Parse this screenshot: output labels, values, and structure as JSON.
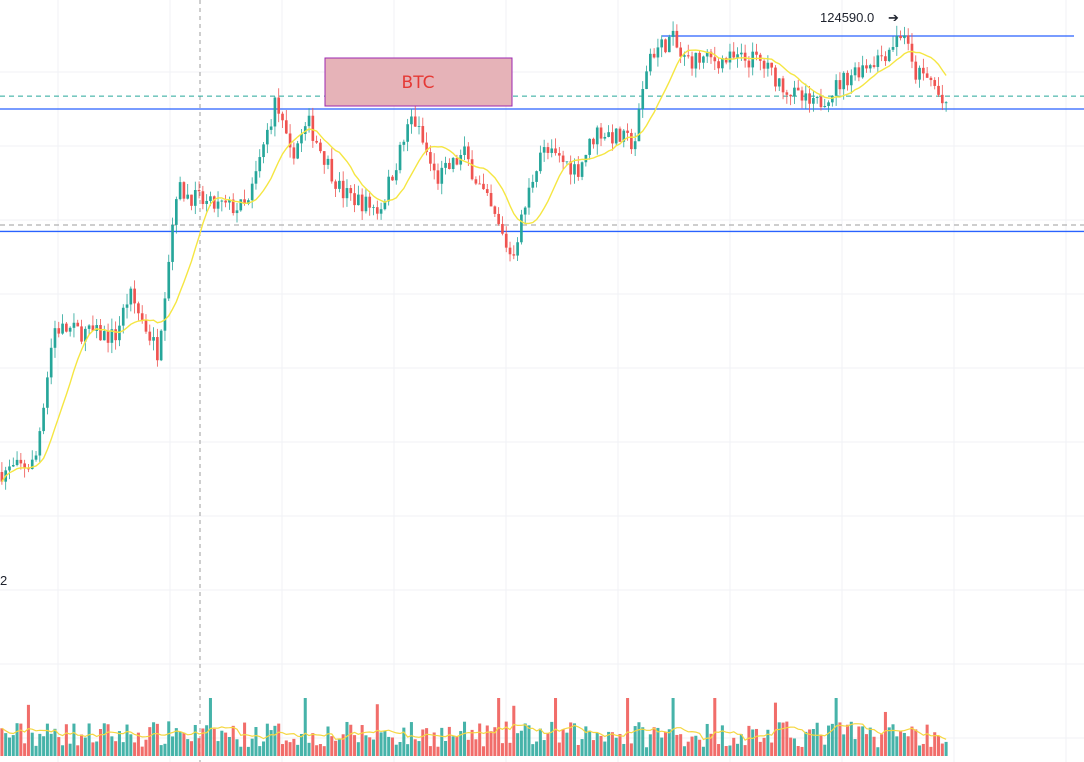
{
  "chart_data": {
    "type": "candlestick",
    "symbol_label": "BTC",
    "high_label": "124590.0",
    "left_edge_label": "2",
    "colors": {
      "up": "#26a69a",
      "down": "#ef5350",
      "ma": "#f5e642",
      "support_resistance": "#2962ff",
      "dashed_level_upper": "#26a69a",
      "dashed_level_lower": "#9e9e9e",
      "btc_box_fill": "#e6b3b8",
      "btc_box_border": "#9c27b0",
      "btc_text": "#e53935"
    },
    "price_range": [
      100000,
      126000
    ],
    "keyframes": [
      {
        "t": 0,
        "p": 104000
      },
      {
        "t": 0.035,
        "p": 104400
      },
      {
        "t": 0.055,
        "p": 110700
      },
      {
        "t": 0.12,
        "p": 110300
      },
      {
        "t": 0.135,
        "p": 112300
      },
      {
        "t": 0.165,
        "p": 109600
      },
      {
        "t": 0.185,
        "p": 117200
      },
      {
        "t": 0.22,
        "p": 116400
      },
      {
        "t": 0.26,
        "p": 116300
      },
      {
        "t": 0.29,
        "p": 121300
      },
      {
        "t": 0.305,
        "p": 118700
      },
      {
        "t": 0.325,
        "p": 120200
      },
      {
        "t": 0.36,
        "p": 117000
      },
      {
        "t": 0.4,
        "p": 116200
      },
      {
        "t": 0.435,
        "p": 120600
      },
      {
        "t": 0.46,
        "p": 117600
      },
      {
        "t": 0.49,
        "p": 118800
      },
      {
        "t": 0.52,
        "p": 116000
      },
      {
        "t": 0.54,
        "p": 114000
      },
      {
        "t": 0.57,
        "p": 119000
      },
      {
        "t": 0.61,
        "p": 118100
      },
      {
        "t": 0.63,
        "p": 119900
      },
      {
        "t": 0.67,
        "p": 119300
      },
      {
        "t": 0.685,
        "p": 123400
      },
      {
        "t": 0.71,
        "p": 124200
      },
      {
        "t": 0.72,
        "p": 123200
      },
      {
        "t": 0.8,
        "p": 123200
      },
      {
        "t": 0.84,
        "p": 121500
      },
      {
        "t": 0.86,
        "p": 121000
      },
      {
        "t": 0.9,
        "p": 122600
      },
      {
        "t": 0.935,
        "p": 123500
      },
      {
        "t": 0.955,
        "p": 124600
      },
      {
        "t": 0.965,
        "p": 122600
      },
      {
        "t": 0.985,
        "p": 122200
      },
      {
        "t": 1.0,
        "p": 120800
      }
    ],
    "candle_count": 250,
    "horizontal_levels": [
      {
        "kind": "solid-partial",
        "price": 124300
      },
      {
        "kind": "dashed-teal",
        "price": 121500
      },
      {
        "kind": "solid",
        "price": 120900
      },
      {
        "kind": "dashed-gray",
        "price": 115500
      },
      {
        "kind": "solid",
        "price": 115200
      }
    ],
    "grid": true
  }
}
